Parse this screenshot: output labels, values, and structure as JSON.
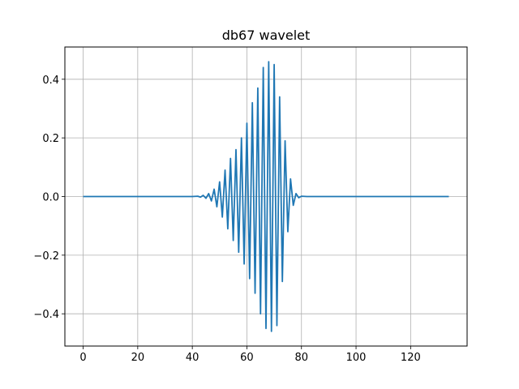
{
  "chart_data": {
    "type": "line",
    "title": "db67 wavelet",
    "xlabel": "",
    "ylabel": "",
    "xlim": [
      -6.7,
      140.7
    ],
    "ylim": [
      -0.51,
      0.51
    ],
    "xticks": [
      0,
      20,
      40,
      60,
      80,
      100,
      120
    ],
    "yticks": [
      -0.4,
      -0.2,
      0.0,
      0.2,
      0.4
    ],
    "xtick_labels": [
      "0",
      "20",
      "40",
      "60",
      "80",
      "100",
      "120"
    ],
    "ytick_labels": [
      "−0.4",
      "−0.2",
      "0.0",
      "0.2",
      "0.4"
    ],
    "grid": true,
    "series": [
      {
        "color": "#1f77b4",
        "x": [
          0,
          40,
          42,
          43,
          44,
          45,
          46,
          47,
          48,
          49,
          50,
          51,
          52,
          53,
          54,
          55,
          56,
          57,
          58,
          59,
          60,
          61,
          62,
          63,
          64,
          65,
          66,
          67,
          68,
          69,
          70,
          71,
          72,
          73,
          74,
          75,
          76,
          77,
          78,
          79,
          80,
          82,
          134
        ],
        "values": [
          0,
          0,
          0.001,
          -0.002,
          0.004,
          -0.006,
          0.01,
          -0.015,
          0.025,
          -0.035,
          0.05,
          -0.07,
          0.09,
          -0.11,
          0.13,
          -0.15,
          0.16,
          -0.19,
          0.2,
          -0.23,
          0.25,
          -0.28,
          0.32,
          -0.33,
          0.37,
          -0.4,
          0.44,
          -0.45,
          0.46,
          -0.46,
          0.45,
          -0.44,
          0.34,
          -0.29,
          0.19,
          -0.12,
          0.06,
          -0.03,
          0.01,
          -0.004,
          0.001,
          0,
          0
        ]
      }
    ]
  },
  "colors": {
    "line": "#1f77b4",
    "grid": "#b0b0b0",
    "axes": "#000000"
  }
}
